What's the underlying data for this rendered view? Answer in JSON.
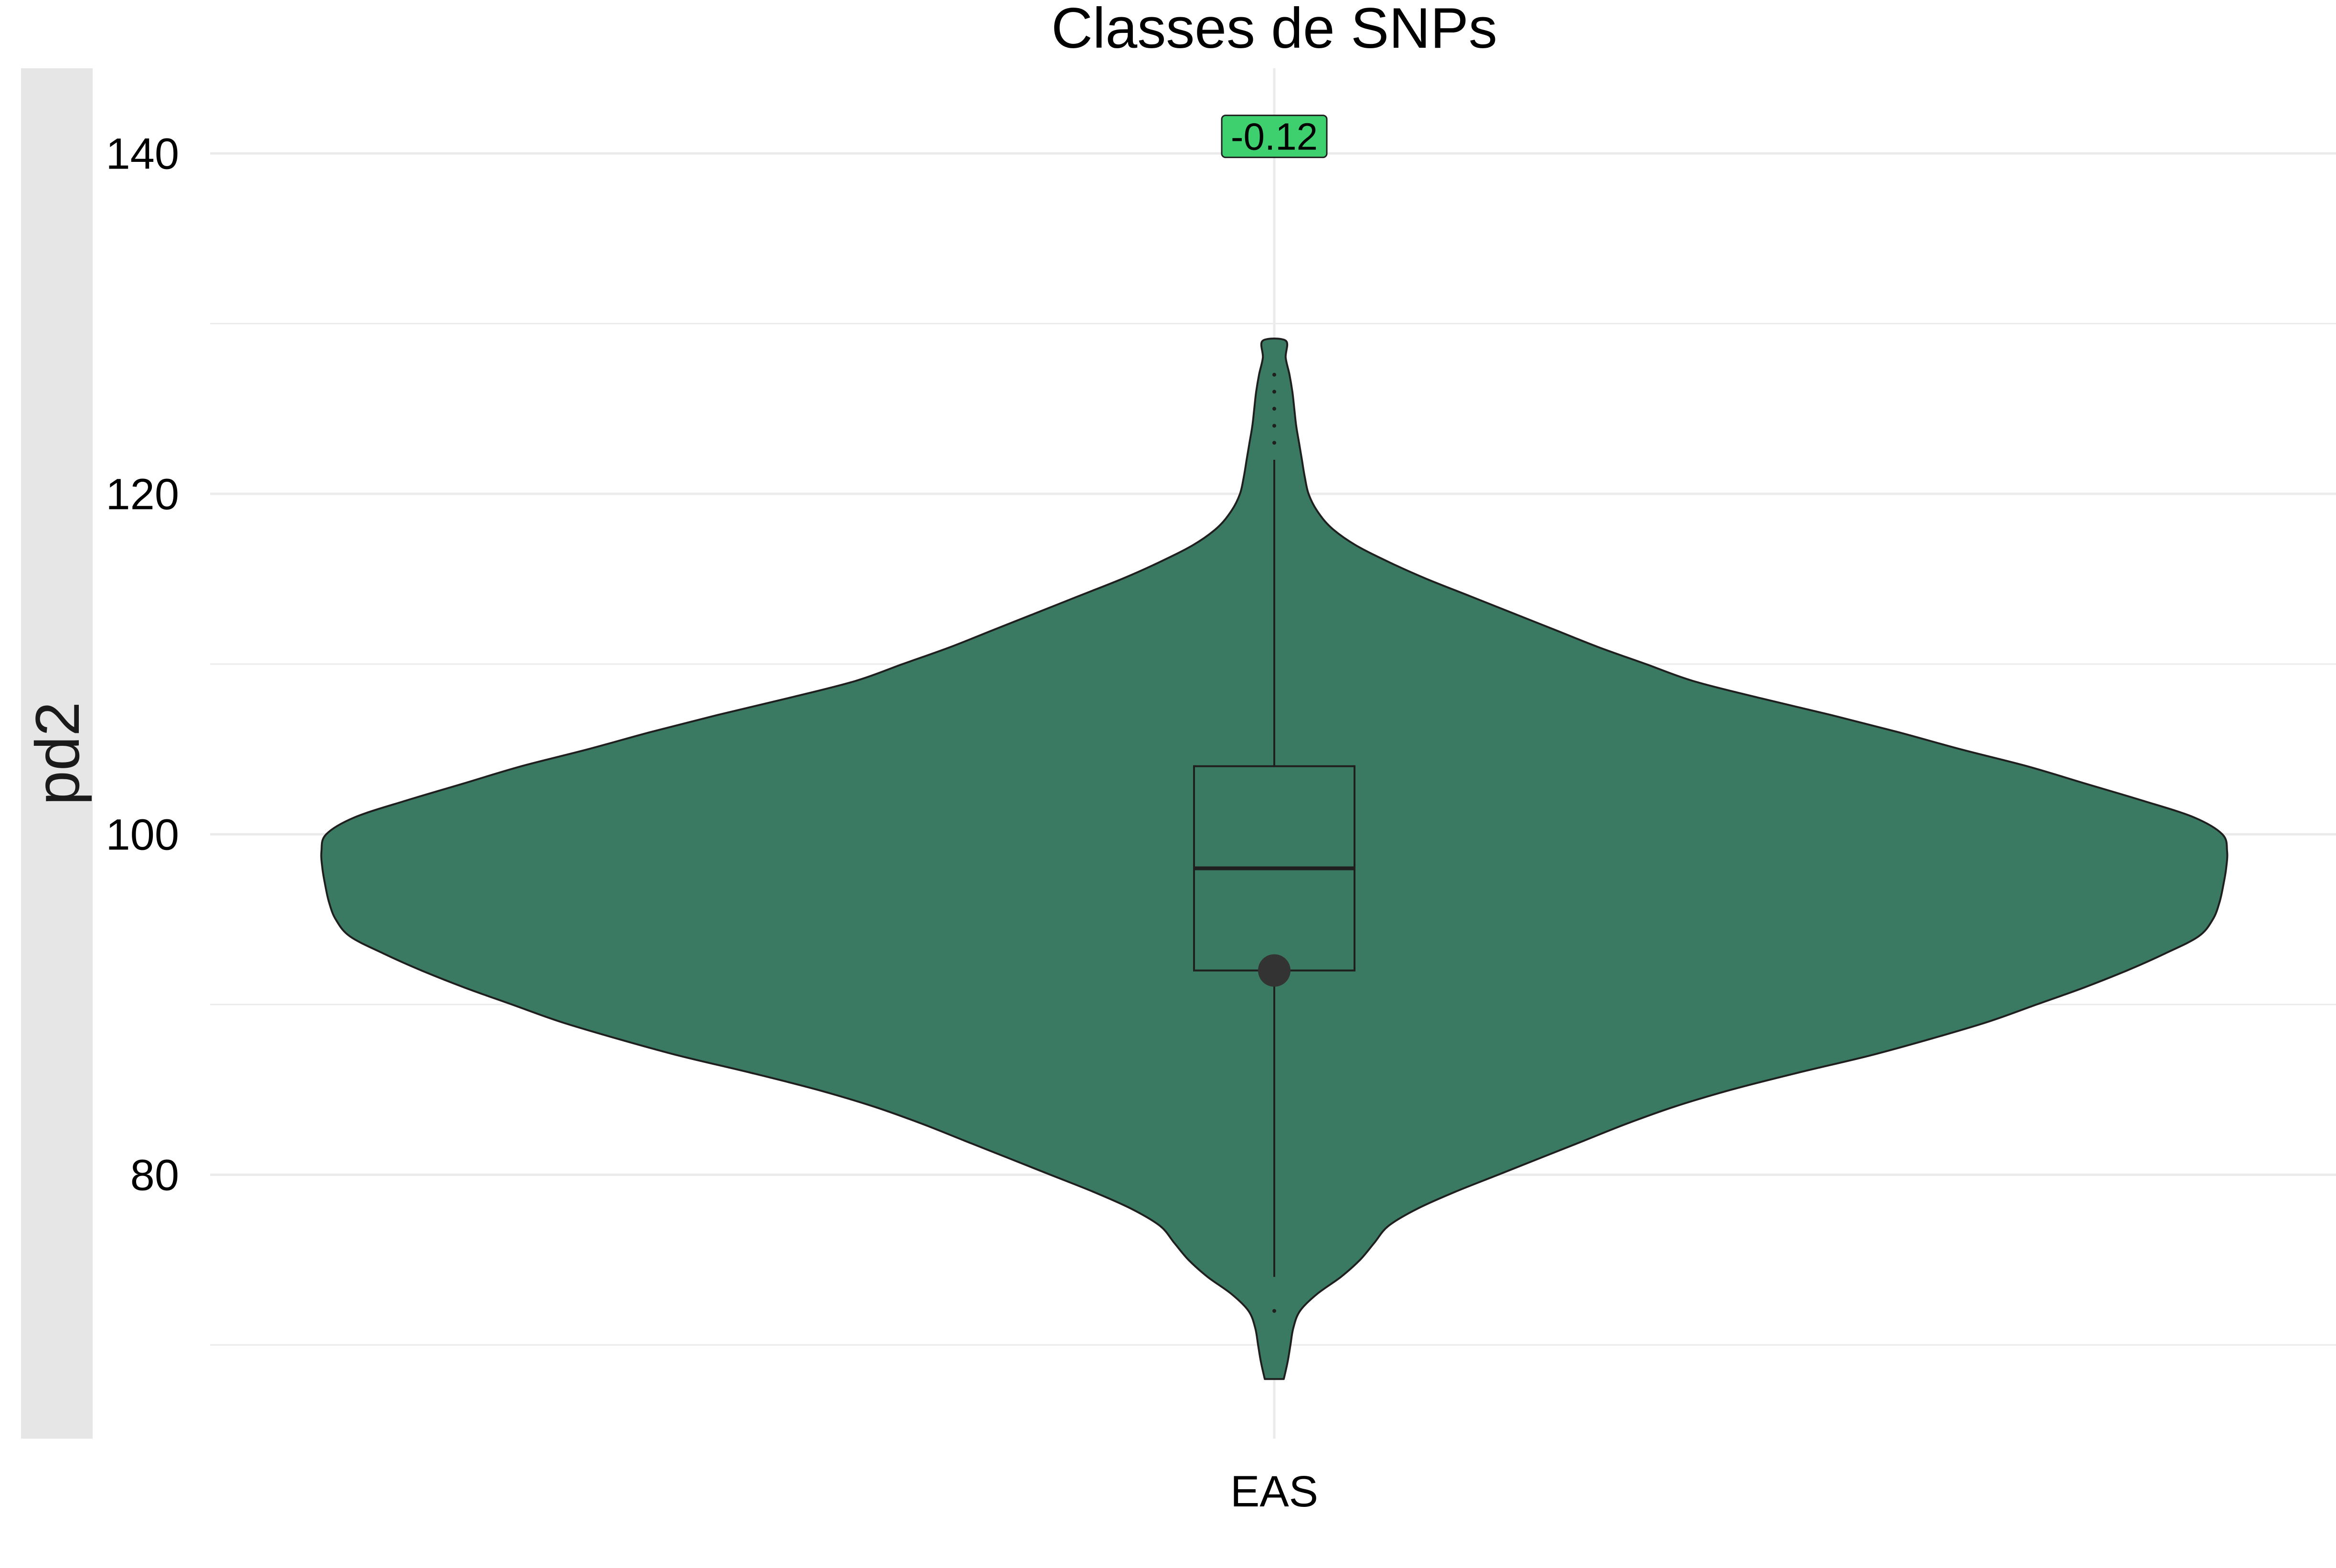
{
  "chart_data": {
    "type": "violin",
    "title": "Classes de SNPs",
    "xlabel": "",
    "ylabel": "pd2",
    "categories": [
      "EAS"
    ],
    "y_ticks": [
      80,
      100,
      120,
      140
    ],
    "ylim": [
      64.5,
      145
    ],
    "grid": true,
    "legend": "none",
    "colors": {
      "violin_fill": "#3a7a62",
      "outline": "#1f1f1f",
      "label_fill": "#3ecf6f",
      "grid": "#ebebeb",
      "strip": "#e6e6e6"
    },
    "violin": {
      "y_min": 68,
      "y_max": 129,
      "profile": [
        [
          68,
          0.01
        ],
        [
          69,
          0.014
        ],
        [
          70,
          0.017
        ],
        [
          71,
          0.02
        ],
        [
          72,
          0.027
        ],
        [
          73,
          0.045
        ],
        [
          74,
          0.07
        ],
        [
          75,
          0.09
        ],
        [
          76,
          0.105
        ],
        [
          77,
          0.12
        ],
        [
          78,
          0.15
        ],
        [
          79,
          0.19
        ],
        [
          80,
          0.235
        ],
        [
          81,
          0.28
        ],
        [
          82,
          0.325
        ],
        [
          83,
          0.37
        ],
        [
          84,
          0.42
        ],
        [
          85,
          0.48
        ],
        [
          86,
          0.55
        ],
        [
          87,
          0.625
        ],
        [
          88,
          0.69
        ],
        [
          89,
          0.75
        ],
        [
          90,
          0.8
        ],
        [
          91,
          0.85
        ],
        [
          92,
          0.895
        ],
        [
          93,
          0.935
        ],
        [
          94,
          0.97
        ],
        [
          95,
          0.985
        ],
        [
          96,
          0.992
        ],
        [
          97,
          0.996
        ],
        [
          98,
          0.999
        ],
        [
          99,
          1.0
        ],
        [
          100,
          0.995
        ],
        [
          101,
          0.965
        ],
        [
          102,
          0.91
        ],
        [
          103,
          0.85
        ],
        [
          104,
          0.79
        ],
        [
          105,
          0.72
        ],
        [
          106,
          0.655
        ],
        [
          107,
          0.585
        ],
        [
          108,
          0.51
        ],
        [
          109,
          0.44
        ],
        [
          110,
          0.39
        ],
        [
          111,
          0.34
        ],
        [
          112,
          0.295
        ],
        [
          113,
          0.25
        ],
        [
          114,
          0.205
        ],
        [
          115,
          0.16
        ],
        [
          116,
          0.12
        ],
        [
          117,
          0.085
        ],
        [
          118,
          0.06
        ],
        [
          119,
          0.045
        ],
        [
          120,
          0.036
        ],
        [
          121,
          0.032
        ],
        [
          122,
          0.029
        ],
        [
          123,
          0.026
        ],
        [
          124,
          0.023
        ],
        [
          125,
          0.021
        ],
        [
          126,
          0.019
        ],
        [
          127,
          0.016
        ],
        [
          128,
          0.012
        ],
        [
          129,
          0.012
        ]
      ]
    },
    "boxplot": {
      "q1": 92,
      "median": 98,
      "q3": 104,
      "whisker_low": 74,
      "whisker_high": 122
    },
    "outliers": [
      72,
      123,
      124,
      125,
      126,
      127
    ],
    "mean_point": 92,
    "annotation": {
      "text": "-0.12",
      "y": 141
    }
  }
}
